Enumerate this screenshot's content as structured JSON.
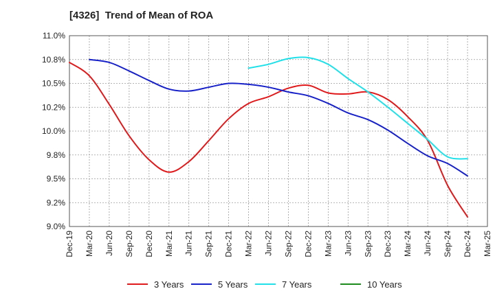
{
  "chart_data": {
    "type": "line",
    "title": "[4326]  Trend of Mean of ROA",
    "xlabel": "",
    "ylabel": "",
    "ylim": [
      9.0,
      11.0
    ],
    "y_ticks": [
      "9.0%",
      "9.2%",
      "9.5%",
      "9.8%",
      "10.0%",
      "10.2%",
      "10.5%",
      "10.8%",
      "11.0%"
    ],
    "y_tick_values": [
      9.0,
      9.25,
      9.5,
      9.75,
      10.0,
      10.25,
      10.5,
      10.75,
      11.0
    ],
    "grid": true,
    "legend_position": "bottom",
    "categories": [
      "Dec-19",
      "Mar-20",
      "Jun-20",
      "Sep-20",
      "Dec-20",
      "Mar-21",
      "Jun-21",
      "Sep-21",
      "Dec-21",
      "Mar-22",
      "Jun-22",
      "Sep-22",
      "Dec-22",
      "Mar-23",
      "Jun-23",
      "Sep-23",
      "Dec-23",
      "Mar-24",
      "Jun-24",
      "Sep-24",
      "Dec-24",
      "Mar-25"
    ],
    "series": [
      {
        "name": "3 Years",
        "color": "#e0181a",
        "values": [
          10.72,
          10.58,
          10.28,
          9.95,
          9.7,
          9.57,
          9.68,
          9.9,
          10.13,
          10.29,
          10.36,
          10.45,
          10.48,
          10.4,
          10.39,
          10.41,
          10.33,
          10.15,
          9.9,
          9.43,
          9.1,
          null
        ]
      },
      {
        "name": "5 Years",
        "color": "#1620c8",
        "values": [
          null,
          10.75,
          10.72,
          10.63,
          10.53,
          10.44,
          10.42,
          10.46,
          10.5,
          10.49,
          10.46,
          10.41,
          10.37,
          10.29,
          10.19,
          10.12,
          10.01,
          9.87,
          9.74,
          9.66,
          9.53,
          null
        ]
      },
      {
        "name": "7 Years",
        "color": "#1ee0e8",
        "values": [
          null,
          null,
          null,
          null,
          null,
          null,
          null,
          null,
          null,
          10.66,
          10.7,
          10.76,
          10.77,
          10.7,
          10.55,
          10.41,
          10.25,
          10.08,
          9.91,
          9.73,
          9.71,
          null
        ]
      },
      {
        "name": "10 Years",
        "color": "#1a8a1a",
        "values": [
          null,
          null,
          null,
          null,
          null,
          null,
          null,
          null,
          null,
          null,
          null,
          null,
          null,
          null,
          null,
          null,
          null,
          null,
          null,
          null,
          null,
          null
        ]
      }
    ]
  }
}
